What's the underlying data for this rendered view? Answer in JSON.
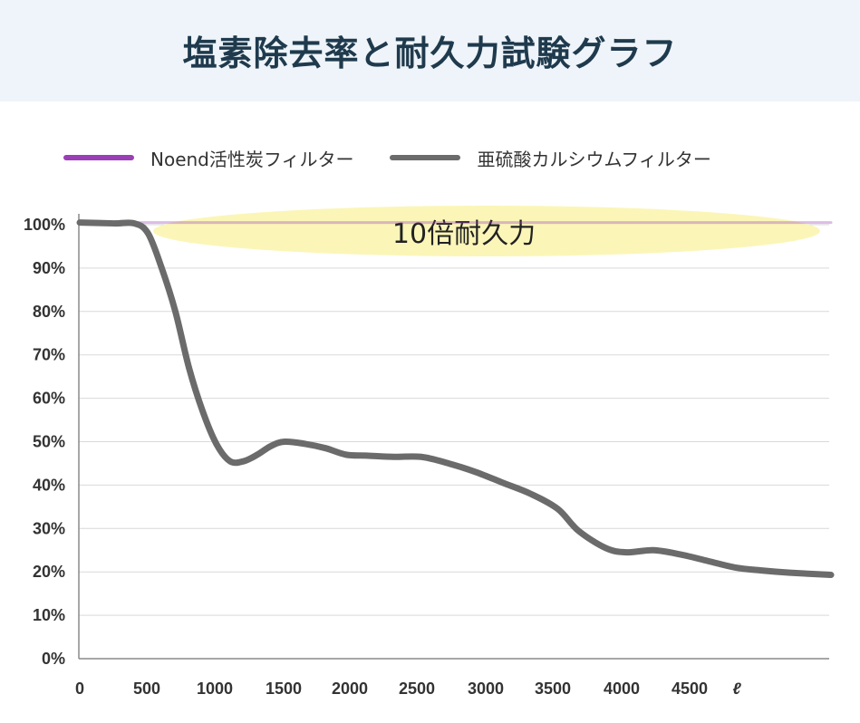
{
  "page_title": "塩素除去率と耐久力試験グラフ",
  "chart_data": {
    "type": "line",
    "legend": [
      {
        "name": "Noend活性炭フィルター",
        "color": "#9b3fb6"
      },
      {
        "name": "亜硫酸カルシウムフィルター",
        "color": "#6b6b6b"
      }
    ],
    "x_ticks": [
      "0",
      "500",
      "1000",
      "1500",
      "2000",
      "2500",
      "3000",
      "3500",
      "4000",
      "4500"
    ],
    "x_unit": "ℓ",
    "y_ticks": [
      "0%",
      "10%",
      "20%",
      "30%",
      "40%",
      "50%",
      "60%",
      "70%",
      "80%",
      "90%",
      "100%"
    ],
    "xlim": [
      0,
      5500
    ],
    "ylim": [
      0,
      100
    ],
    "grid": true,
    "legend_position": "top",
    "annotation": "10倍耐久力",
    "series": [
      {
        "name": "Noend活性炭フィルター",
        "color": "#9b3fb6",
        "x": [
          0,
          5500
        ],
        "y": [
          100.5,
          100.5
        ]
      },
      {
        "name": "亜硫酸カルシウムフィルター",
        "color": "#6b6b6b",
        "x": [
          0,
          250,
          400,
          500,
          600,
          700,
          800,
          900,
          1000,
          1100,
          1200,
          1300,
          1400,
          1500,
          1650,
          1800,
          1950,
          2100,
          2300,
          2500,
          2700,
          2900,
          3100,
          3300,
          3500,
          3650,
          3850,
          4000,
          4200,
          4400,
          4600,
          4800,
          5000,
          5200,
          5500
        ],
        "y": [
          100.5,
          100.3,
          100.3,
          98,
          90,
          80,
          67,
          57,
          49.5,
          45.5,
          45.5,
          47,
          49,
          50,
          49.5,
          48.5,
          47,
          46.8,
          46.5,
          46.5,
          45,
          43,
          40.5,
          38,
          34.5,
          29.5,
          25.5,
          24.5,
          25,
          24,
          22.5,
          21,
          20.3,
          19.8,
          19.3
        ]
      }
    ]
  }
}
